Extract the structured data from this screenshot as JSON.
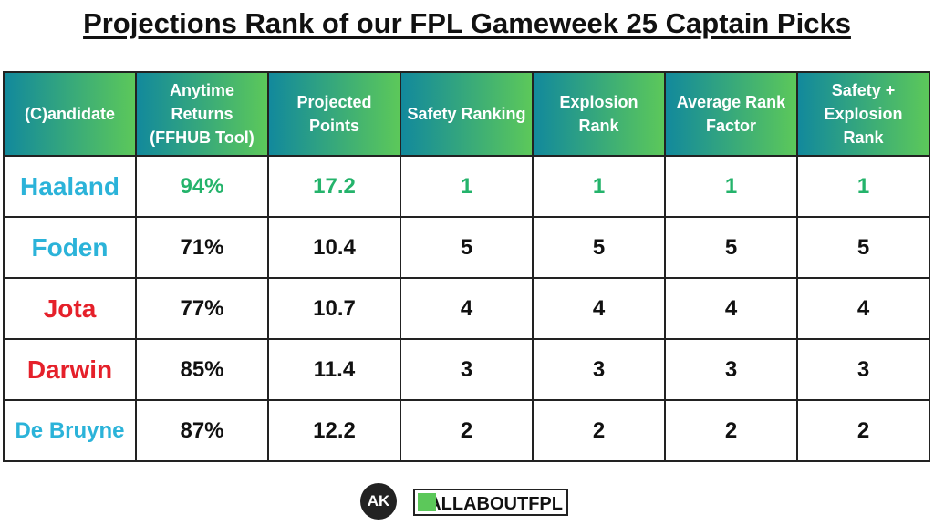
{
  "header": {
    "title": "Projections Rank of our FPL Gameweek 25 Captain Picks"
  },
  "table": {
    "columns": [
      "(C)andidate",
      "Anytime Returns (FFHUB Tool)",
      "Projected Points",
      "Safety Ranking",
      "Explosion Rank",
      "Average Rank Factor",
      "Safety + Explosion Rank"
    ],
    "rows": [
      [
        "Haaland",
        "94%",
        "17.2",
        "1",
        "1",
        "1",
        "1"
      ],
      [
        "Foden",
        "71%",
        "10.4",
        "5",
        "5",
        "5",
        "5"
      ],
      [
        "Jota",
        "77%",
        "10.7",
        "4",
        "4",
        "4",
        "4"
      ],
      [
        "Darwin",
        "85%",
        "11.4",
        "3",
        "3",
        "3",
        "3"
      ],
      [
        "De Bruyne",
        "87%",
        "12.2",
        "2",
        "2",
        "2",
        "2"
      ]
    ]
  },
  "footer": {
    "logo_mark": "AK",
    "logo_text": "ALLABOUTFPL"
  }
}
